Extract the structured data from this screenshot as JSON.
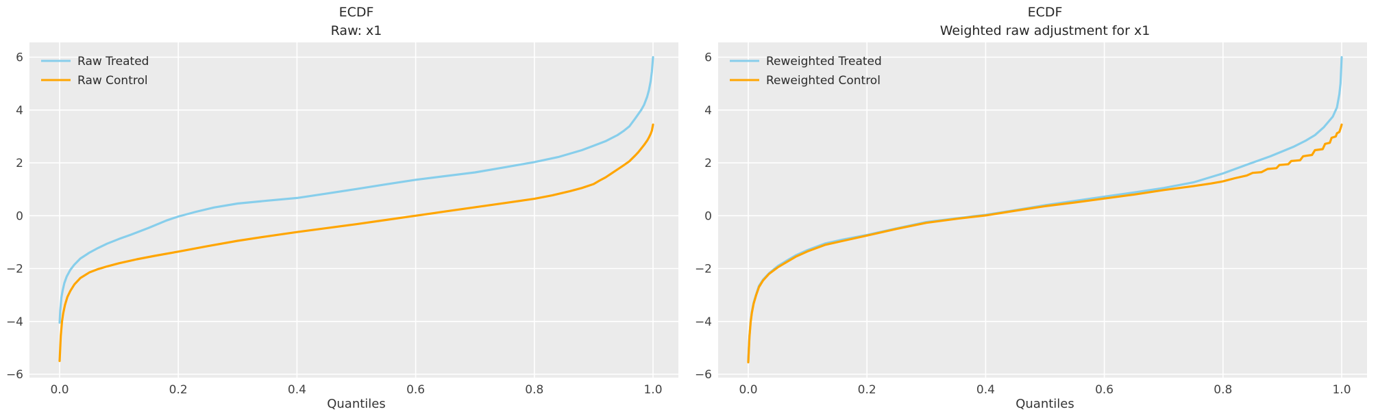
{
  "figure": {
    "background": "#ffffff",
    "axes_background": "#ebebeb",
    "grid_color": "#ffffff",
    "title_color": "#262626",
    "tick_color": "#424242",
    "treated_color": "#87CEEB",
    "control_color": "#FFA500"
  },
  "chart_data": [
    {
      "type": "line",
      "title_lines": [
        "ECDF",
        "Raw: x1"
      ],
      "xlabel": "Quantiles",
      "grid": true,
      "legend": {
        "position": "upper left"
      },
      "xlim": [
        -0.0508,
        1.0427
      ],
      "ylim": [
        -6.13,
        6.56
      ],
      "xticks": [
        0.0,
        0.2,
        0.4,
        0.6,
        0.8,
        1.0
      ],
      "xtick_labels": [
        "0.0",
        "0.2",
        "0.4",
        "0.6",
        "0.8",
        "1.0"
      ],
      "yticks": [
        6,
        4,
        2,
        0,
        -2,
        -4,
        -6
      ],
      "ytick_labels": [
        "6",
        "4",
        "2",
        "0",
        "−2",
        "−4",
        "−6"
      ],
      "series": [
        {
          "name": "Raw Treated",
          "color": "#87CEEB",
          "points": [
            [
              0,
              -4.05
            ],
            [
              0.001,
              -3.6
            ],
            [
              0.003,
              -3.1
            ],
            [
              0.005,
              -2.85
            ],
            [
              0.008,
              -2.55
            ],
            [
              0.012,
              -2.3
            ],
            [
              0.018,
              -2.05
            ],
            [
              0.025,
              -1.85
            ],
            [
              0.035,
              -1.62
            ],
            [
              0.05,
              -1.4
            ],
            [
              0.065,
              -1.22
            ],
            [
              0.08,
              -1.06
            ],
            [
              0.1,
              -0.88
            ],
            [
              0.12,
              -0.72
            ],
            [
              0.15,
              -0.46
            ],
            [
              0.18,
              -0.18
            ],
            [
              0.2,
              -0.03
            ],
            [
              0.23,
              0.15
            ],
            [
              0.26,
              0.31
            ],
            [
              0.3,
              0.46
            ],
            [
              0.35,
              0.57
            ],
            [
              0.4,
              0.67
            ],
            [
              0.45,
              0.84
            ],
            [
              0.5,
              1.01
            ],
            [
              0.55,
              1.19
            ],
            [
              0.6,
              1.36
            ],
            [
              0.65,
              1.5
            ],
            [
              0.7,
              1.64
            ],
            [
              0.75,
              1.83
            ],
            [
              0.8,
              2.03
            ],
            [
              0.84,
              2.22
            ],
            [
              0.88,
              2.48
            ],
            [
              0.9,
              2.65
            ],
            [
              0.92,
              2.82
            ],
            [
              0.94,
              3.05
            ],
            [
              0.95,
              3.2
            ],
            [
              0.96,
              3.38
            ],
            [
              0.97,
              3.68
            ],
            [
              0.98,
              4.0
            ],
            [
              0.985,
              4.2
            ],
            [
              0.99,
              4.5
            ],
            [
              0.993,
              4.75
            ],
            [
              0.996,
              5.1
            ],
            [
              0.998,
              5.45
            ],
            [
              1,
              6.0
            ]
          ]
        },
        {
          "name": "Raw Control",
          "color": "#FFA500",
          "points": [
            [
              0,
              -5.5
            ],
            [
              0.001,
              -5.0
            ],
            [
              0.002,
              -4.55
            ],
            [
              0.004,
              -4.0
            ],
            [
              0.006,
              -3.7
            ],
            [
              0.009,
              -3.38
            ],
            [
              0.013,
              -3.08
            ],
            [
              0.018,
              -2.85
            ],
            [
              0.025,
              -2.6
            ],
            [
              0.035,
              -2.36
            ],
            [
              0.05,
              -2.15
            ],
            [
              0.065,
              -2.02
            ],
            [
              0.08,
              -1.92
            ],
            [
              0.1,
              -1.8
            ],
            [
              0.13,
              -1.65
            ],
            [
              0.16,
              -1.52
            ],
            [
              0.2,
              -1.36
            ],
            [
              0.25,
              -1.15
            ],
            [
              0.3,
              -0.95
            ],
            [
              0.35,
              -0.78
            ],
            [
              0.4,
              -0.62
            ],
            [
              0.45,
              -0.47
            ],
            [
              0.5,
              -0.32
            ],
            [
              0.55,
              -0.16
            ],
            [
              0.6,
              0.0
            ],
            [
              0.65,
              0.16
            ],
            [
              0.7,
              0.32
            ],
            [
              0.75,
              0.48
            ],
            [
              0.8,
              0.64
            ],
            [
              0.83,
              0.77
            ],
            [
              0.86,
              0.93
            ],
            [
              0.88,
              1.05
            ],
            [
              0.9,
              1.2
            ],
            [
              0.91,
              1.33
            ],
            [
              0.92,
              1.45
            ],
            [
              0.93,
              1.6
            ],
            [
              0.94,
              1.75
            ],
            [
              0.95,
              1.9
            ],
            [
              0.96,
              2.06
            ],
            [
              0.97,
              2.28
            ],
            [
              0.975,
              2.4
            ],
            [
              0.98,
              2.54
            ],
            [
              0.985,
              2.68
            ],
            [
              0.99,
              2.84
            ],
            [
              0.993,
              2.96
            ],
            [
              0.996,
              3.1
            ],
            [
              0.998,
              3.22
            ],
            [
              1,
              3.45
            ]
          ]
        }
      ]
    },
    {
      "type": "line",
      "title_lines": [
        "ECDF",
        "Weighted raw adjustment for x1"
      ],
      "xlabel": "Quantiles",
      "grid": true,
      "legend": {
        "position": "upper left"
      },
      "xlim": [
        -0.0508,
        1.0427
      ],
      "ylim": [
        -6.13,
        6.56
      ],
      "xticks": [
        0.0,
        0.2,
        0.4,
        0.6,
        0.8,
        1.0
      ],
      "xtick_labels": [
        "0.0",
        "0.2",
        "0.4",
        "0.6",
        "0.8",
        "1.0"
      ],
      "yticks": [
        6,
        4,
        2,
        0,
        -2,
        -4,
        -6
      ],
      "ytick_labels": [
        "6",
        "4",
        "2",
        "0",
        "−2",
        "−4",
        "−6"
      ],
      "series": [
        {
          "name": "Reweighted Treated",
          "color": "#87CEEB",
          "points": [
            [
              0,
              -5.5
            ],
            [
              0.001,
              -5.0
            ],
            [
              0.002,
              -4.55
            ],
            [
              0.004,
              -4.0
            ],
            [
              0.006,
              -3.65
            ],
            [
              0.009,
              -3.3
            ],
            [
              0.013,
              -3.0
            ],
            [
              0.018,
              -2.66
            ],
            [
              0.025,
              -2.42
            ],
            [
              0.035,
              -2.18
            ],
            [
              0.05,
              -1.9
            ],
            [
              0.065,
              -1.7
            ],
            [
              0.08,
              -1.5
            ],
            [
              0.1,
              -1.3
            ],
            [
              0.13,
              -1.05
            ],
            [
              0.16,
              -0.9
            ],
            [
              0.2,
              -0.73
            ],
            [
              0.25,
              -0.48
            ],
            [
              0.3,
              -0.24
            ],
            [
              0.35,
              -0.1
            ],
            [
              0.4,
              0.03
            ],
            [
              0.45,
              0.21
            ],
            [
              0.5,
              0.4
            ],
            [
              0.55,
              0.56
            ],
            [
              0.6,
              0.72
            ],
            [
              0.65,
              0.88
            ],
            [
              0.7,
              1.05
            ],
            [
              0.75,
              1.26
            ],
            [
              0.8,
              1.6
            ],
            [
              0.84,
              1.93
            ],
            [
              0.88,
              2.25
            ],
            [
              0.92,
              2.62
            ],
            [
              0.94,
              2.85
            ],
            [
              0.955,
              3.05
            ],
            [
              0.97,
              3.35
            ],
            [
              0.985,
              3.75
            ],
            [
              0.992,
              4.1
            ],
            [
              0.996,
              4.6
            ],
            [
              0.998,
              5.0
            ],
            [
              1,
              6.0
            ]
          ]
        },
        {
          "name": "Reweighted Control",
          "color": "#FFA500",
          "points": [
            [
              0,
              -5.55
            ],
            [
              0.001,
              -5.05
            ],
            [
              0.002,
              -4.6
            ],
            [
              0.004,
              -4.02
            ],
            [
              0.006,
              -3.68
            ],
            [
              0.009,
              -3.33
            ],
            [
              0.013,
              -3.02
            ],
            [
              0.018,
              -2.7
            ],
            [
              0.025,
              -2.45
            ],
            [
              0.035,
              -2.2
            ],
            [
              0.05,
              -1.95
            ],
            [
              0.065,
              -1.75
            ],
            [
              0.08,
              -1.55
            ],
            [
              0.1,
              -1.35
            ],
            [
              0.13,
              -1.1
            ],
            [
              0.16,
              -0.95
            ],
            [
              0.2,
              -0.75
            ],
            [
              0.25,
              -0.5
            ],
            [
              0.3,
              -0.27
            ],
            [
              0.35,
              -0.12
            ],
            [
              0.4,
              0.01
            ],
            [
              0.45,
              0.19
            ],
            [
              0.5,
              0.36
            ],
            [
              0.55,
              0.5
            ],
            [
              0.6,
              0.65
            ],
            [
              0.65,
              0.8
            ],
            [
              0.7,
              0.97
            ],
            [
              0.75,
              1.12
            ],
            [
              0.78,
              1.22
            ],
            [
              0.8,
              1.3
            ],
            [
              0.82,
              1.42
            ],
            [
              0.84,
              1.52
            ],
            [
              0.85,
              1.62
            ],
            [
              0.865,
              1.65
            ],
            [
              0.875,
              1.77
            ],
            [
              0.89,
              1.8
            ],
            [
              0.895,
              1.92
            ],
            [
              0.91,
              1.95
            ],
            [
              0.915,
              2.07
            ],
            [
              0.93,
              2.1
            ],
            [
              0.935,
              2.25
            ],
            [
              0.95,
              2.3
            ],
            [
              0.955,
              2.48
            ],
            [
              0.968,
              2.52
            ],
            [
              0.972,
              2.72
            ],
            [
              0.98,
              2.76
            ],
            [
              0.983,
              2.95
            ],
            [
              0.99,
              3.0
            ],
            [
              0.992,
              3.12
            ],
            [
              0.996,
              3.17
            ],
            [
              0.998,
              3.3
            ],
            [
              1,
              3.45
            ]
          ]
        }
      ]
    }
  ]
}
